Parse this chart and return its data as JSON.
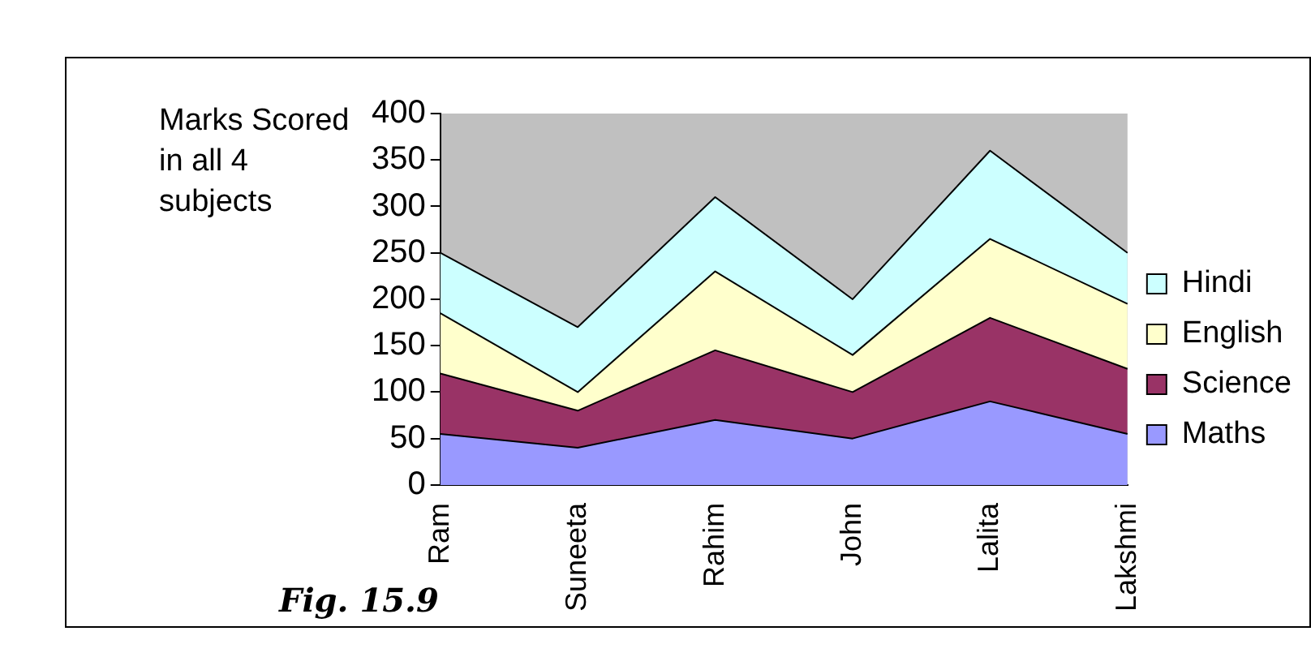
{
  "chart_data": {
    "type": "area",
    "title": "Marks Scored in all 4 subjects",
    "annotations": [
      "Fig. 15.9"
    ],
    "categories": [
      "Ram",
      "Suneeta",
      "Rahim",
      "John",
      "Lalita",
      "Lakshmi"
    ],
    "stacked": true,
    "series": [
      {
        "name": "Maths",
        "color": "#9999ff",
        "values": [
          55,
          40,
          70,
          50,
          90,
          55
        ]
      },
      {
        "name": "Science",
        "color": "#993366",
        "values": [
          65,
          40,
          75,
          50,
          90,
          70
        ]
      },
      {
        "name": "English",
        "color": "#ffffcc",
        "values": [
          65,
          20,
          85,
          40,
          85,
          70
        ]
      },
      {
        "name": "Hindi",
        "color": "#ccffff",
        "values": [
          65,
          70,
          80,
          60,
          95,
          55
        ]
      }
    ],
    "ylim": [
      0,
      400
    ],
    "yticks": [
      0,
      50,
      100,
      150,
      200,
      250,
      300,
      350,
      400
    ],
    "grid": false,
    "legend": "right"
  }
}
